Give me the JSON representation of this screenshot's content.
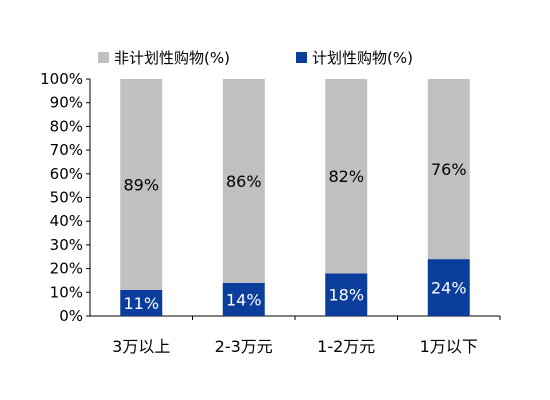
{
  "chart_data": {
    "type": "bar",
    "stacked": true,
    "categories": [
      "3万以上",
      "2-3万元",
      "1-2万元",
      "1万以下"
    ],
    "series": [
      {
        "name": "计划性购物(%)",
        "values": [
          11,
          14,
          18,
          24
        ],
        "color": "#0a3d9c",
        "label_color": "#ffffff"
      },
      {
        "name": "非计划性购物(%)",
        "values": [
          89,
          86,
          82,
          76
        ],
        "color": "#c0c0c0",
        "label_color": "#000000"
      }
    ],
    "data_labels": {
      "planned": [
        "11%",
        "14%",
        "18%",
        "24%"
      ],
      "unplanned": [
        "89%",
        "86%",
        "82%",
        "76%"
      ]
    },
    "ylim": [
      0,
      100
    ],
    "yticks": [
      "0%",
      "10%",
      "20%",
      "30%",
      "40%",
      "50%",
      "60%",
      "70%",
      "80%",
      "90%",
      "100%"
    ],
    "legend_position": "top",
    "grid": false,
    "title": "",
    "xlabel": "",
    "ylabel": ""
  }
}
